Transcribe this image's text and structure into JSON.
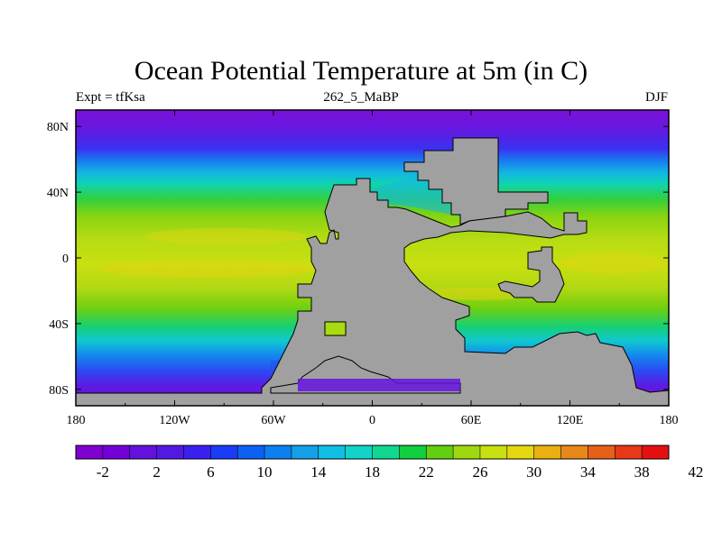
{
  "title": "Ocean Potential Temperature at 5m (in C)",
  "subtitle_left": "Expt = tfKsa",
  "subtitle_center": "262_5_MaBP",
  "subtitle_right": "DJF",
  "lon_ticks": [
    "180",
    "120W",
    "60W",
    "0",
    "60E",
    "120E",
    "180"
  ],
  "lat_ticks": [
    "80N",
    "40N",
    "0",
    "40S",
    "80S"
  ],
  "colorbar": {
    "labels": [
      "-2",
      "2",
      "6",
      "10",
      "14",
      "18",
      "22",
      "26",
      "30",
      "34",
      "38",
      "42"
    ],
    "colors": [
      "#8000d0",
      "#7200d8",
      "#6410de",
      "#5418e4",
      "#3a20f0",
      "#1a3cf8",
      "#0c60f4",
      "#0c80f0",
      "#14a0ea",
      "#10c0e4",
      "#10d4c8",
      "#10d890",
      "#10d040",
      "#60d010",
      "#a0d810",
      "#c8e010",
      "#e4d810",
      "#e8b010",
      "#e88818",
      "#e86018",
      "#e83818",
      "#e41010"
    ]
  },
  "colors": {
    "land": "#a0a0a0",
    "ocean_cold": "#6a18e0",
    "ocean_warm": "#b8dc14"
  }
}
